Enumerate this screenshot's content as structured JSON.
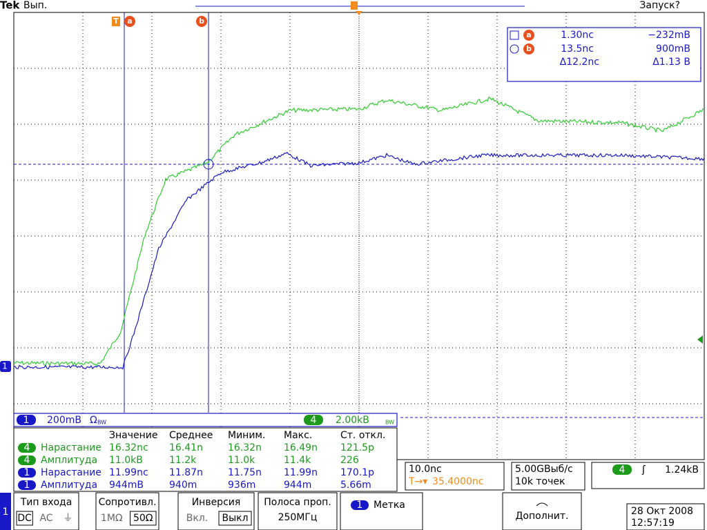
{
  "header": {
    "brand": "Tek",
    "state": "Вып.",
    "trigger_status": "Запуск?"
  },
  "cursor_marks": {
    "trigger": "T",
    "a": "a",
    "b": "b"
  },
  "cursor_readout": {
    "a": {
      "label": "a",
      "time": "1.30nс",
      "level": "−232mВ"
    },
    "b": {
      "label": "b",
      "time": "13.5nс",
      "level": "900mВ"
    },
    "delta": {
      "time": "Δ12.2nс",
      "level": "Δ1.13 В"
    }
  },
  "markers": {
    "ch1": "1"
  },
  "channels": [
    {
      "number": "1",
      "scale": "200mВ",
      "coupling": "Ω",
      "bw": "BW"
    },
    {
      "number": "4",
      "scale": "2.00kВ",
      "bw": "BW"
    }
  ],
  "measurements": {
    "columns": [
      "Значение",
      "Среднее",
      "Миним.",
      "Макс.",
      "Ст. откл."
    ],
    "rows": [
      {
        "channel": "4",
        "name": "Нарастание",
        "value": "16.32nс",
        "mean": "16.41n",
        "min": "16.32n",
        "max": "16.49n",
        "std": "121.5p"
      },
      {
        "channel": "4",
        "name": "Амплитуда",
        "value": "11.0kВ",
        "mean": "11.2k",
        "min": "11.0k",
        "max": "11.4k",
        "std": "226"
      },
      {
        "channel": "1",
        "name": "Нарастание",
        "value": "11.99nс",
        "mean": "11.87n",
        "min": "11.75n",
        "max": "11.99n",
        "std": "170.1p"
      },
      {
        "channel": "1",
        "name": "Амплитуда",
        "value": "944mВ",
        "mean": "940m",
        "min": "936m",
        "max": "944m",
        "std": "5.66m"
      }
    ]
  },
  "timebase": {
    "scale": "10.0nс",
    "trigger_icon": "T→▾",
    "position": "35.4000nс"
  },
  "acquisition": {
    "rate": "5.00GВыб/с",
    "length": "10k точек"
  },
  "trigger": {
    "channel": "4",
    "slope": "ʃ",
    "level": "1.24kВ"
  },
  "menu": {
    "tab": "1",
    "items": [
      {
        "title": "Тип входа",
        "options": [
          "DC",
          "AC",
          "⏚"
        ]
      },
      {
        "title": "Сопротивл.",
        "options": [
          "1MΩ",
          "50Ω"
        ]
      },
      {
        "title": "Инверсия",
        "options": [
          "Вкл.",
          "Выкл"
        ]
      },
      {
        "title": "Полоса проп.",
        "options": [
          "250МГц"
        ]
      },
      {
        "channel": "1",
        "title": "Метка"
      },
      {
        "title": "Дополнит."
      }
    ]
  },
  "datetime": {
    "date": "28 Окт 2008",
    "time": "12:57:19"
  }
}
